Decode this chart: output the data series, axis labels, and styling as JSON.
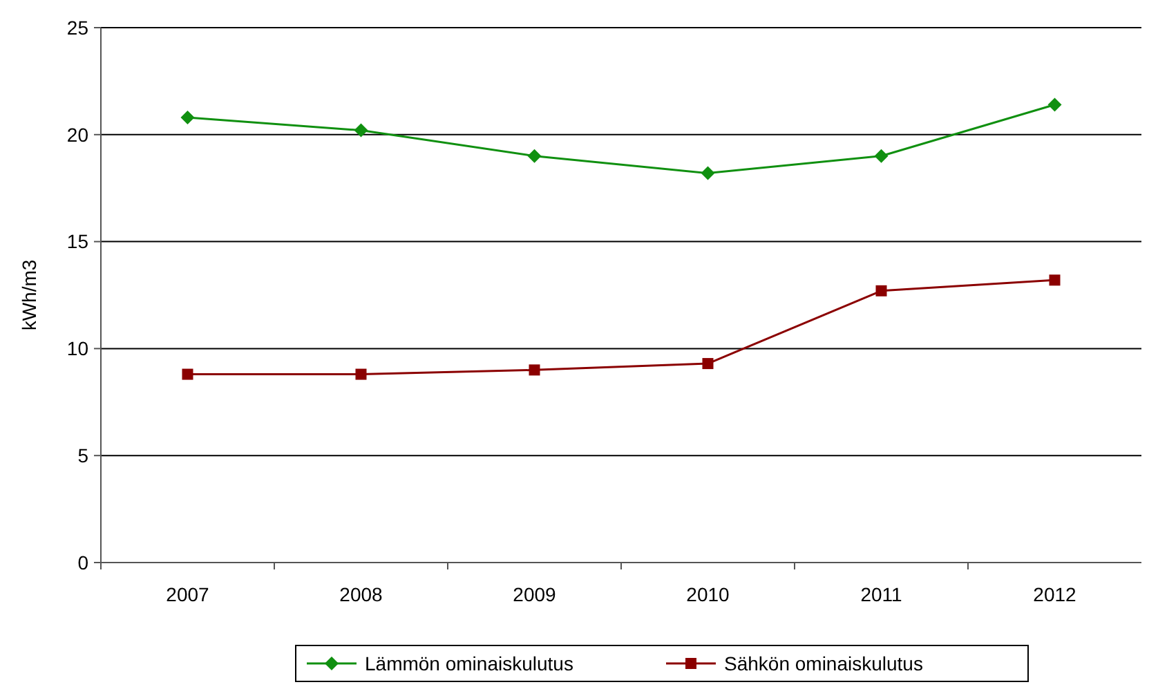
{
  "chart_data": {
    "type": "line",
    "ylabel": "kWh/m3",
    "categories": [
      "2007",
      "2008",
      "2009",
      "2010",
      "2011",
      "2012"
    ],
    "series": [
      {
        "name": "Lämmön ominaiskulutus",
        "color": "#109010",
        "marker": "diamond",
        "values": [
          20.8,
          20.2,
          19.0,
          18.2,
          19.0,
          21.4
        ]
      },
      {
        "name": "Sähkön ominaiskulutus",
        "color": "#8b0000",
        "marker": "square",
        "values": [
          8.8,
          8.8,
          9.0,
          9.3,
          12.7,
          13.2
        ]
      }
    ],
    "ylim": [
      0,
      25
    ],
    "yticks": [
      0,
      5,
      10,
      15,
      20,
      25
    ],
    "grid": "y",
    "legend": "bottom"
  }
}
